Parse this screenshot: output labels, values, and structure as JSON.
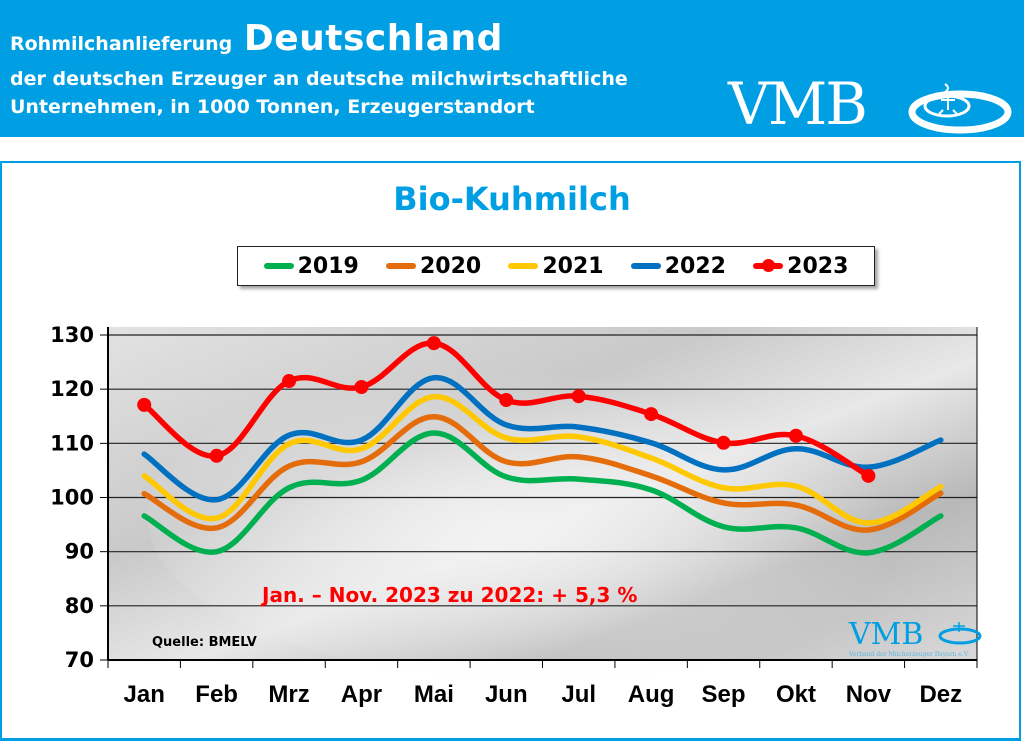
{
  "header": {
    "line1_small": "Rohmilchanlieferung",
    "line1_big": "Deutschland",
    "line2": "der deutschen Erzeuger an deutsche milchwirtschaftliche",
    "line3": "Unternehmen, in 1000 Tonnen, Erzeugerstandort",
    "logo_text": "VMB"
  },
  "chart_data": {
    "type": "line",
    "title": "Bio-Kuhmilch",
    "xlabel": "",
    "ylabel": "",
    "categories": [
      "Jan",
      "Feb",
      "Mrz",
      "Apr",
      "Mai",
      "Jun",
      "Jul",
      "Aug",
      "Sep",
      "Okt",
      "Nov",
      "Dez"
    ],
    "yticks": [
      70,
      80,
      90,
      100,
      110,
      120,
      130
    ],
    "ylim": [
      70,
      130
    ],
    "grid": true,
    "legend_position": "top-center",
    "series": [
      {
        "name": "2019",
        "color": "#00b050",
        "markers": false,
        "values": [
          96.6,
          90.0,
          101.8,
          103.2,
          111.9,
          103.8,
          103.4,
          101.4,
          94.6,
          94.4,
          89.8,
          96.6
        ]
      },
      {
        "name": "2020",
        "color": "#e46c0a",
        "markers": false,
        "values": [
          100.7,
          94.4,
          105.8,
          106.6,
          114.9,
          106.6,
          107.5,
          104.0,
          99.0,
          98.6,
          94.0,
          100.8
        ]
      },
      {
        "name": "2021",
        "color": "#ffc800",
        "markers": false,
        "values": [
          104.0,
          96.2,
          109.9,
          109.0,
          118.6,
          111.0,
          111.2,
          107.3,
          101.8,
          102.1,
          95.3,
          102.0
        ]
      },
      {
        "name": "2022",
        "color": "#0070c0",
        "markers": false,
        "values": [
          108.0,
          99.6,
          111.5,
          110.6,
          122.1,
          113.4,
          113.0,
          110.1,
          105.1,
          109.0,
          105.6,
          110.6
        ]
      },
      {
        "name": "2023",
        "color": "#ff0000",
        "markers": true,
        "values": [
          117.1,
          107.7,
          121.5,
          120.4,
          128.5,
          118.0,
          118.7,
          115.4,
          110.1,
          111.4,
          104.0,
          null
        ]
      }
    ],
    "annotations": [
      {
        "text": "Jan. – Nov. 2023 zu 2022: + 5,3 %"
      },
      {
        "text": "Quelle: BMELV"
      }
    ]
  },
  "watermark": {
    "text": "VMB",
    "subtext": "Verband der Milcherzeuger Bayern e.V."
  }
}
